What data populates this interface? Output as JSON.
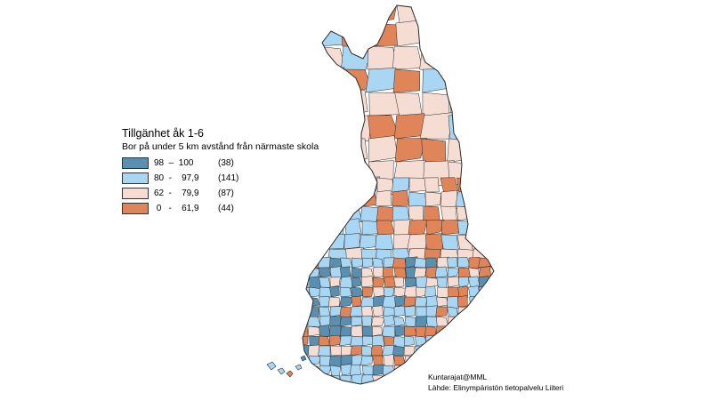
{
  "legend": {
    "title": "Tillgänhet åk 1-6",
    "subtitle": "Bor på under 5 km avstånd från närmaste skola",
    "classes": [
      {
        "range": "98  –  100",
        "count": "(38)",
        "color": "#5b8fb0"
      },
      {
        "range": "80  -    97,9",
        "count": "(141)",
        "color": "#a9d6f2"
      },
      {
        "range": "62  -    79,9",
        "count": "(87)",
        "color": "#f6ddd3"
      },
      {
        "range": " 0   -    61,9",
        "count": "(44)",
        "color": "#e0855a"
      }
    ]
  },
  "credits": {
    "line1": "Kuntarajat@MML",
    "line2": "Lähde: Elinympäristön tietopalvelu Liiteri"
  },
  "colors": {
    "border": "#2a2a2a",
    "background": "#ffffff"
  }
}
